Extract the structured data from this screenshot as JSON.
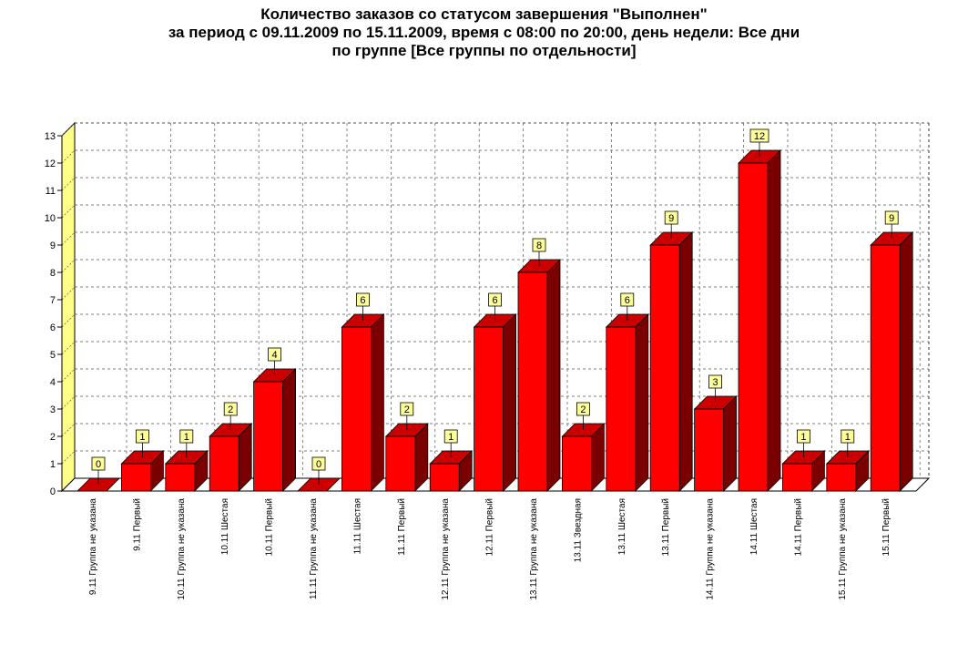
{
  "chart_data": {
    "type": "bar",
    "title_lines": [
      "Количество заказов со статусом завершения \"Выполнен\"",
      "за период с 09.11.2009 по 15.11.2009, время с 08:00 по 20:00, день недели: Все дни",
      "по группе [Все группы по отдельности]"
    ],
    "xlabel": "",
    "ylabel": "",
    "ylim": [
      0,
      13
    ],
    "yticks": [
      0,
      1,
      2,
      3,
      4,
      5,
      6,
      7,
      8,
      9,
      10,
      11,
      12,
      13
    ],
    "grid": true,
    "style": "3d",
    "colors": {
      "bar_front": "#ff0000",
      "bar_top": "#cc0000",
      "bar_side": "#7a0000",
      "wall": "#ffff88",
      "label_box": "#ffff99"
    },
    "categories": [
      "9.11 Группа не указана",
      "9.11 Первый",
      "10.11 Группа не указана",
      "10.11 Шестая",
      "10.11 Первый",
      "11.11 Группа не указана",
      "11.11 Шестая",
      "11.11 Первый",
      "12.11 Группа не указана",
      "12.11 Первый",
      "13.11 Группа не указана",
      "13.11 Звездная",
      "13.11 Шестая",
      "13.11 Первый",
      "14.11 Группа не указана",
      "14.11 Шестая",
      "14.11 Первый",
      "15.11 Группа не указана",
      "15.11 Первый"
    ],
    "values": [
      0,
      1,
      1,
      2,
      4,
      0,
      6,
      2,
      1,
      6,
      8,
      2,
      6,
      9,
      3,
      12,
      1,
      1,
      9
    ]
  }
}
